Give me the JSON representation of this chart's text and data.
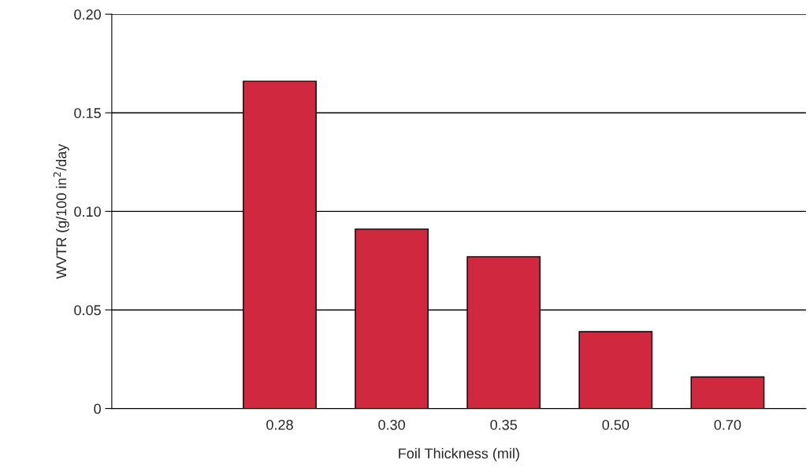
{
  "chart_data": {
    "type": "bar",
    "xlabel": "Foil Thickness (mil)",
    "ylabel": "WVTR (g/100 in$^{2}$/day",
    "categories": [
      "0.28",
      "0.30",
      "0.35",
      "0.50",
      "0.70"
    ],
    "series": [
      {
        "color": "#d0283e",
        "values": [
          0.166,
          0.091,
          0.077,
          0.039,
          0.016
        ]
      }
    ],
    "ylim": [
      0,
      0.2
    ],
    "yticks": [
      0,
      {
        "value": 0.05,
        "label": "0.05"
      },
      {
        "value": 0.1,
        "label": "0.10"
      },
      {
        "value": 0.15,
        "label": "0.15"
      },
      {
        "value": 0.2,
        "label": "0.20"
      }
    ],
    "grid": "y",
    "legend": false
  }
}
